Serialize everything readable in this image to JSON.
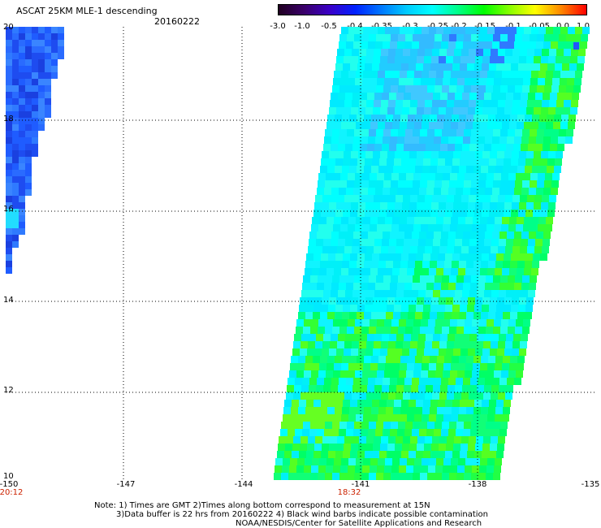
{
  "header": {
    "title": "ASCAT 25KM MLE-1 descending",
    "date": "20160222"
  },
  "colorbar": {
    "labels": [
      "-3.0",
      "-1.0",
      "-0.5",
      "-0.4",
      "-0.35",
      "-0.3",
      "-0.25",
      "-0.2",
      "-0.15",
      "-0.1",
      "-0.05",
      "0.0",
      "1.0"
    ],
    "colors": [
      "#200020",
      "#3a006a",
      "#3a00c8",
      "#0022ff",
      "#0077ff",
      "#00ccff",
      "#00ffff",
      "#00ff88",
      "#00ff00",
      "#88ff00",
      "#ffff00",
      "#ff8800",
      "#ff0000"
    ]
  },
  "map": {
    "lat_labels": [
      "20",
      "18",
      "16",
      "14",
      "12",
      "10"
    ],
    "lon_labels": [
      "-150",
      "-147",
      "-144",
      "-141",
      "-138",
      "-135"
    ],
    "times": [
      "20:12",
      "18:32"
    ]
  },
  "notes": {
    "line1": "Note: 1) Times are GMT 2)Times along bottom correspond to measurement at 15N",
    "line2": "3)Data buffer is 22 hrs from 20160222 4) Black wind barbs indicate possible contamination",
    "line3": "NOAA/NESDIS/Center for Satellite Applications and Research"
  }
}
